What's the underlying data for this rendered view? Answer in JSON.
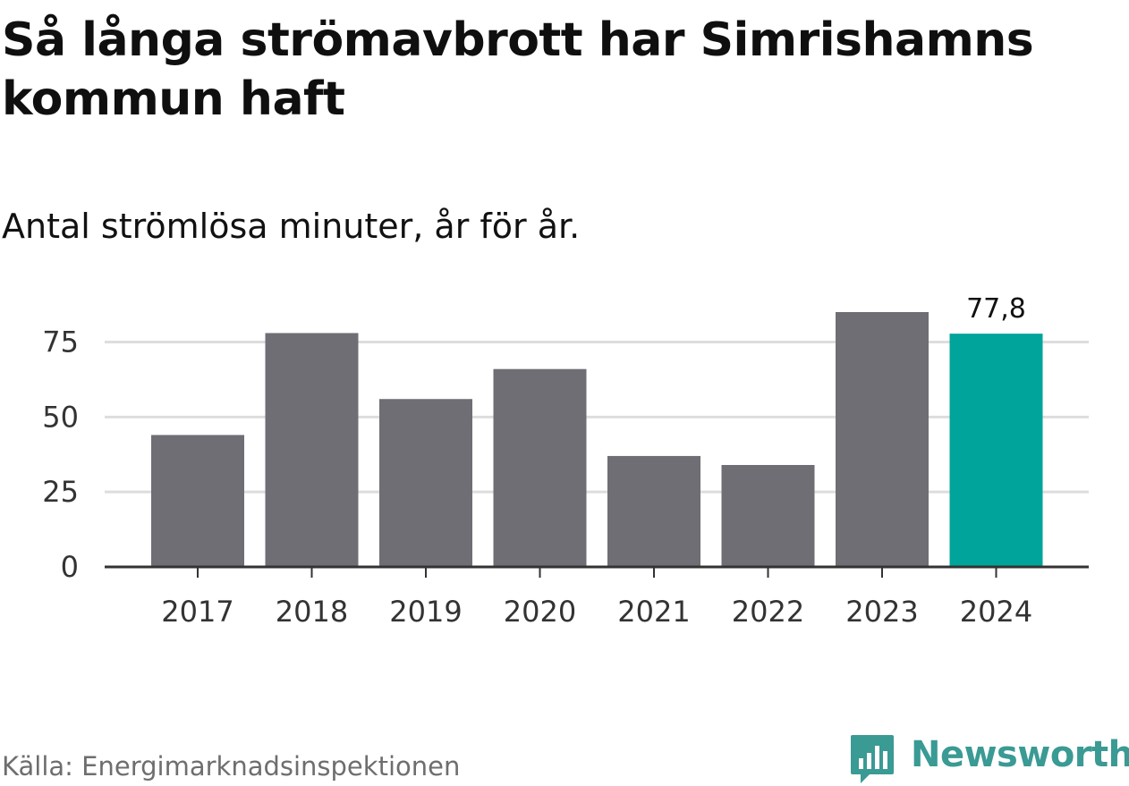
{
  "header": {
    "title": "Så långa strömavbrott har Simrishamns kommun haft",
    "subtitle": "Antal strömlösa minuter, år för år."
  },
  "footer": {
    "source": "Källa: Energimarknadsinspektionen",
    "brand": "Newsworthy",
    "brand_icon": "bar-chart-speech-bubble-icon"
  },
  "colors": {
    "bar": "#6f6e75",
    "highlight": "#00a49a",
    "grid": "#dddddd",
    "axis": "#333333",
    "brand": "#3a9a94"
  },
  "chart_data": {
    "type": "bar",
    "title": "Så långa strömavbrott har Simrishamns kommun haft",
    "subtitle": "Antal strömlösa minuter, år för år.",
    "xlabel": "",
    "ylabel": "",
    "categories": [
      "2017",
      "2018",
      "2019",
      "2020",
      "2021",
      "2022",
      "2023",
      "2024"
    ],
    "values": [
      44,
      78,
      56,
      66,
      37,
      34,
      85,
      77.8
    ],
    "highlight_index": 7,
    "highlight_label": "77,8",
    "ylim": [
      0,
      85
    ],
    "yticks": [
      0,
      25,
      50,
      75
    ],
    "ytick_labels": [
      "0",
      "25",
      "50",
      "75"
    ],
    "grid": true,
    "legend": "none"
  }
}
